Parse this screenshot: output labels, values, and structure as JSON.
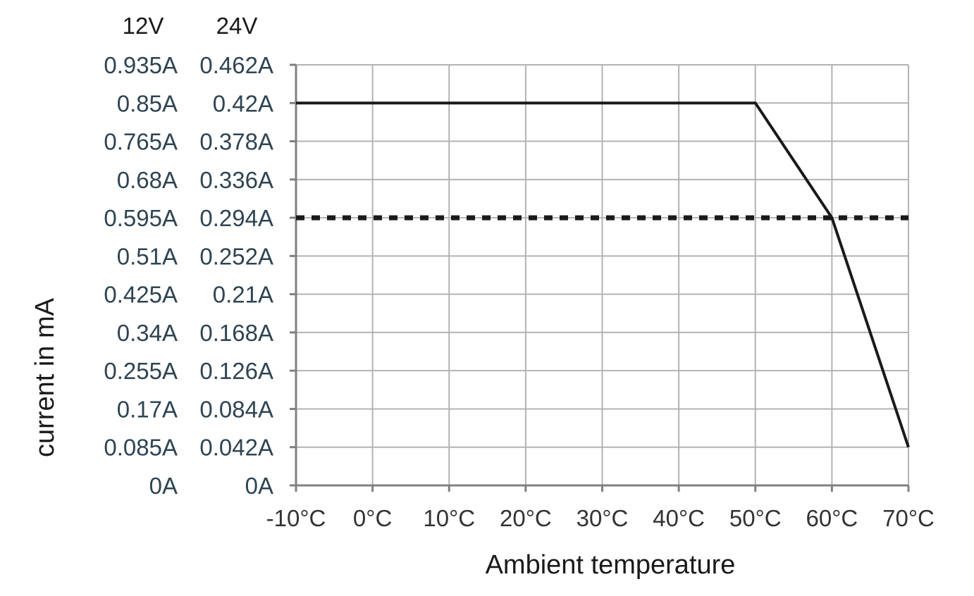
{
  "chart_data": {
    "type": "line",
    "xlabel": "Ambient temperature",
    "ylabel": "current in mA",
    "x_ticks": [
      "-10°C",
      "0°C",
      "10°C",
      "20°C",
      "30°C",
      "40°C",
      "50°C",
      "60°C",
      "70°C"
    ],
    "y_axis_12v_header": "12V",
    "y_axis_24v_header": "24V",
    "y_ticks_12v": [
      "0A",
      "0.085A",
      "0.17A",
      "0.255A",
      "0.34A",
      "0.425A",
      "0.51A",
      "0.595A",
      "0.68A",
      "0.765A",
      "0.85A",
      "0.935A"
    ],
    "y_ticks_24v": [
      "0A",
      "0.042A",
      "0.084A",
      "0.126A",
      "0.168A",
      "0.21A",
      "0.252A",
      "0.294A",
      "0.336A",
      "0.378A",
      "0.42A",
      "0.462A"
    ],
    "xlim": [
      -10,
      70
    ],
    "ylim_24v": [
      0,
      0.462
    ],
    "grid": true,
    "series": [
      {
        "style": "solid",
        "color": "#1a1a1a",
        "x": [
          -10,
          50,
          60,
          70
        ],
        "y": [
          0.42,
          0.42,
          0.294,
          0.042
        ]
      },
      {
        "style": "dashed",
        "color": "#1a1a1a",
        "x": [
          -10,
          70
        ],
        "y": [
          0.294,
          0.294
        ]
      }
    ]
  }
}
